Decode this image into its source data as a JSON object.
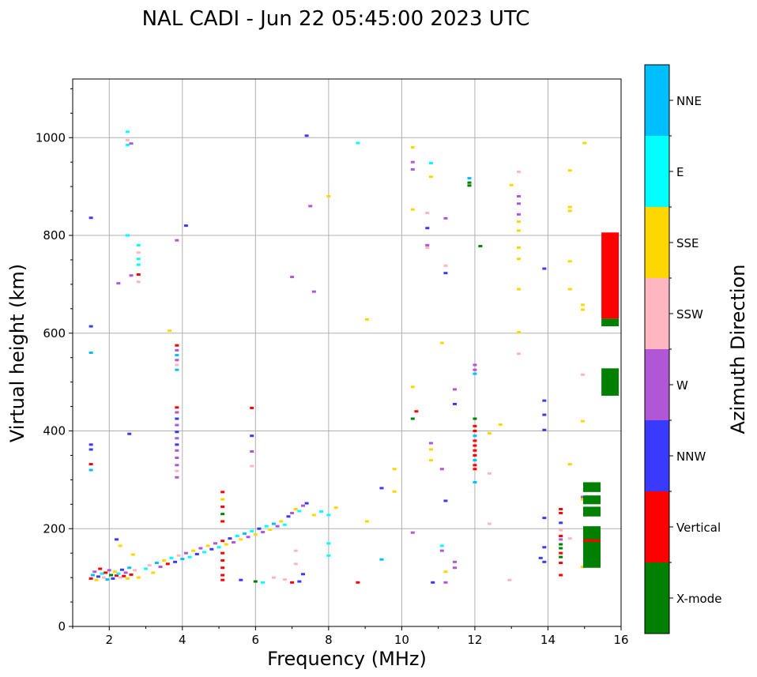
{
  "chart_data": {
    "type": "scatter",
    "title": "NAL CADI - Jun 22 05:45:00 2023 UTC",
    "xlabel": "Frequency (MHz)",
    "ylabel": "Virtual height (km)",
    "xlim": [
      1,
      16
    ],
    "ylim": [
      0,
      1120
    ],
    "xticks": [
      2,
      4,
      6,
      8,
      10,
      12,
      14,
      16
    ],
    "yticks": [
      0,
      200,
      400,
      600,
      800,
      1000
    ],
    "grid": true,
    "colorbar": {
      "label": "Azimuth Direction",
      "categories": [
        {
          "name": "X-mode",
          "color": "#008000"
        },
        {
          "name": "Vertical",
          "color": "#ff0000"
        },
        {
          "name": "NNW",
          "color": "#3a3aff"
        },
        {
          "name": "W",
          "color": "#b157d6"
        },
        {
          "name": "SSW",
          "color": "#ffb6c1"
        },
        {
          "name": "SSE",
          "color": "#ffd700"
        },
        {
          "name": "E",
          "color": "#00ffff"
        },
        {
          "name": "NNE",
          "color": "#00bfff"
        }
      ]
    },
    "points": [
      [
        1.5,
        98,
        "Vertical"
      ],
      [
        1.55,
        105,
        "NNE"
      ],
      [
        1.6,
        112,
        "W"
      ],
      [
        1.65,
        95,
        "SSE"
      ],
      [
        1.7,
        102,
        "NNW"
      ],
      [
        1.75,
        118,
        "Vertical"
      ],
      [
        1.8,
        108,
        "E"
      ],
      [
        1.85,
        100,
        "SSW"
      ],
      [
        1.9,
        110,
        "Vertical"
      ],
      [
        1.95,
        96,
        "NNE"
      ],
      [
        2.0,
        115,
        "W"
      ],
      [
        2.05,
        105,
        "X-mode"
      ],
      [
        2.1,
        98,
        "NNW"
      ],
      [
        2.15,
        112,
        "SSE"
      ],
      [
        2.2,
        104,
        "Vertical"
      ],
      [
        2.25,
        108,
        "E"
      ],
      [
        2.3,
        100,
        "SSW"
      ],
      [
        2.35,
        116,
        "NNW"
      ],
      [
        2.4,
        103,
        "Vertical"
      ],
      [
        2.45,
        110,
        "W"
      ],
      [
        2.5,
        98,
        "SSE"
      ],
      [
        2.55,
        120,
        "NNE"
      ],
      [
        2.6,
        106,
        "Vertical"
      ],
      [
        2.7,
        115,
        "SSW"
      ],
      [
        2.8,
        100,
        "SSE"
      ],
      [
        2.2,
        178,
        "NNW"
      ],
      [
        2.3,
        165,
        "SSE"
      ],
      [
        2.65,
        147,
        "SSE"
      ],
      [
        3.0,
        118,
        "E"
      ],
      [
        3.1,
        125,
        "SSW"
      ],
      [
        3.2,
        110,
        "SSE"
      ],
      [
        3.3,
        130,
        "NNE"
      ],
      [
        3.4,
        122,
        "W"
      ],
      [
        3.5,
        135,
        "SSE"
      ],
      [
        3.6,
        128,
        "Vertical"
      ],
      [
        3.7,
        140,
        "E"
      ],
      [
        3.8,
        132,
        "NNW"
      ],
      [
        3.9,
        145,
        "SSW"
      ],
      [
        4.0,
        138,
        "NNE"
      ],
      [
        4.1,
        150,
        "W"
      ],
      [
        4.2,
        142,
        "E"
      ],
      [
        4.3,
        155,
        "SSE"
      ],
      [
        4.4,
        148,
        "NNW"
      ],
      [
        4.5,
        160,
        "W"
      ],
      [
        4.6,
        152,
        "E"
      ],
      [
        4.7,
        165,
        "SSE"
      ],
      [
        4.8,
        158,
        "NNW"
      ],
      [
        4.9,
        170,
        "W"
      ],
      [
        5.0,
        162,
        "E"
      ],
      [
        5.1,
        175,
        "Vertical"
      ],
      [
        5.2,
        168,
        "SSE"
      ],
      [
        5.3,
        180,
        "NNW"
      ],
      [
        5.4,
        172,
        "W"
      ],
      [
        5.5,
        185,
        "E"
      ],
      [
        5.6,
        178,
        "SSE"
      ],
      [
        5.7,
        190,
        "NNE"
      ],
      [
        5.8,
        183,
        "W"
      ],
      [
        5.9,
        195,
        "E"
      ],
      [
        6.0,
        188,
        "SSE"
      ],
      [
        6.1,
        200,
        "NNW"
      ],
      [
        6.2,
        193,
        "W"
      ],
      [
        6.3,
        205,
        "E"
      ],
      [
        6.4,
        198,
        "SSE"
      ],
      [
        6.5,
        210,
        "NNE"
      ],
      [
        6.6,
        205,
        "W"
      ],
      [
        6.7,
        215,
        "SSE"
      ],
      [
        6.8,
        208,
        "E"
      ],
      [
        6.9,
        225,
        "NNW"
      ],
      [
        7.0,
        232,
        "W"
      ],
      [
        7.1,
        240,
        "SSE"
      ],
      [
        7.2,
        236,
        "E"
      ],
      [
        7.3,
        247,
        "W"
      ],
      [
        7.4,
        252,
        "NNW"
      ],
      [
        7.6,
        228,
        "SSE"
      ],
      [
        7.8,
        235,
        "E"
      ],
      [
        8.2,
        243,
        "SSE"
      ],
      [
        2.5,
        1012,
        "E"
      ],
      [
        2.5,
        995,
        "SSW"
      ],
      [
        2.5,
        985,
        "E"
      ],
      [
        2.6,
        988,
        "W"
      ],
      [
        2.5,
        800,
        "E"
      ],
      [
        2.8,
        780,
        "E"
      ],
      [
        2.8,
        765,
        "SSW"
      ],
      [
        2.8,
        752,
        "E"
      ],
      [
        2.8,
        740,
        "E"
      ],
      [
        2.8,
        720,
        "Vertical"
      ],
      [
        2.8,
        705,
        "SSW"
      ],
      [
        2.6,
        718,
        "W"
      ],
      [
        2.25,
        702,
        "W"
      ],
      [
        1.5,
        836,
        "NNW"
      ],
      [
        1.5,
        614,
        "NNW"
      ],
      [
        1.5,
        560,
        "NNE"
      ],
      [
        1.5,
        372,
        "NNW"
      ],
      [
        1.5,
        362,
        "NNW"
      ],
      [
        1.5,
        332,
        "Vertical"
      ],
      [
        1.5,
        320,
        "NNE"
      ],
      [
        2.55,
        394,
        "NNW"
      ],
      [
        3.65,
        605,
        "SSE"
      ],
      [
        3.85,
        790,
        "W"
      ],
      [
        4.1,
        820,
        "NNW"
      ],
      [
        3.85,
        575,
        "Vertical"
      ],
      [
        3.85,
        565,
        "W"
      ],
      [
        3.85,
        555,
        "NNE"
      ],
      [
        3.85,
        545,
        "W"
      ],
      [
        3.85,
        535,
        "SSW"
      ],
      [
        3.85,
        525,
        "NNE"
      ],
      [
        3.85,
        448,
        "Vertical"
      ],
      [
        3.85,
        438,
        "W"
      ],
      [
        3.85,
        425,
        "NNW"
      ],
      [
        3.85,
        412,
        "W"
      ],
      [
        3.85,
        398,
        "NNW"
      ],
      [
        3.85,
        385,
        "W"
      ],
      [
        3.85,
        372,
        "NNW"
      ],
      [
        3.85,
        360,
        "W"
      ],
      [
        3.85,
        345,
        "W"
      ],
      [
        3.85,
        330,
        "W"
      ],
      [
        3.85,
        318,
        "SSW"
      ],
      [
        3.85,
        305,
        "W"
      ],
      [
        5.1,
        275,
        "Vertical"
      ],
      [
        5.1,
        260,
        "SSE"
      ],
      [
        5.1,
        245,
        "Vertical"
      ],
      [
        5.1,
        230,
        "X-mode"
      ],
      [
        5.1,
        215,
        "Vertical"
      ],
      [
        5.1,
        150,
        "Vertical"
      ],
      [
        5.1,
        135,
        "Vertical"
      ],
      [
        5.1,
        120,
        "Vertical"
      ],
      [
        5.1,
        105,
        "Vertical"
      ],
      [
        5.1,
        95,
        "Vertical"
      ],
      [
        5.9,
        447,
        "Vertical"
      ],
      [
        5.9,
        390,
        "NNW"
      ],
      [
        5.9,
        358,
        "W"
      ],
      [
        5.9,
        328,
        "SSW"
      ],
      [
        5.6,
        95,
        "NNW"
      ],
      [
        6.0,
        92,
        "X-mode"
      ],
      [
        6.2,
        90,
        "E"
      ],
      [
        6.5,
        100,
        "SSW"
      ],
      [
        6.8,
        96,
        "SSW"
      ],
      [
        7.0,
        90,
        "Vertical"
      ],
      [
        7.2,
        92,
        "NNW"
      ],
      [
        7.3,
        107,
        "NNW"
      ],
      [
        7.1,
        128,
        "SSW"
      ],
      [
        7.1,
        155,
        "SSW"
      ],
      [
        7.0,
        715,
        "W"
      ],
      [
        7.5,
        860,
        "W"
      ],
      [
        7.4,
        1004,
        "NNW"
      ],
      [
        7.6,
        685,
        "W"
      ],
      [
        8.0,
        880,
        "SSE"
      ],
      [
        8.0,
        170,
        "E"
      ],
      [
        8.0,
        145,
        "E"
      ],
      [
        8.0,
        228,
        "E"
      ],
      [
        8.8,
        989,
        "E"
      ],
      [
        8.8,
        90,
        "Vertical"
      ],
      [
        9.05,
        628,
        "SSE"
      ],
      [
        9.05,
        215,
        "SSE"
      ],
      [
        9.45,
        283,
        "NNW"
      ],
      [
        9.45,
        137,
        "NNE"
      ],
      [
        9.8,
        322,
        "SSE"
      ],
      [
        9.8,
        276,
        "SSE"
      ],
      [
        10.3,
        980,
        "SSE"
      ],
      [
        10.3,
        950,
        "W"
      ],
      [
        10.3,
        935,
        "W"
      ],
      [
        10.3,
        853,
        "SSE"
      ],
      [
        10.3,
        490,
        "SSE"
      ],
      [
        10.3,
        425,
        "X-mode"
      ],
      [
        10.3,
        192,
        "W"
      ],
      [
        10.4,
        440,
        "Vertical"
      ],
      [
        10.7,
        846,
        "SSW"
      ],
      [
        10.7,
        815,
        "NNW"
      ],
      [
        10.7,
        780,
        "W"
      ],
      [
        10.7,
        775,
        "SSW"
      ],
      [
        10.8,
        948,
        "E"
      ],
      [
        10.8,
        920,
        "SSE"
      ],
      [
        10.8,
        375,
        "W"
      ],
      [
        10.8,
        362,
        "SSE"
      ],
      [
        10.8,
        340,
        "SSE"
      ],
      [
        10.85,
        90,
        "NNW"
      ],
      [
        11.1,
        580,
        "SSE"
      ],
      [
        11.1,
        322,
        "W"
      ],
      [
        11.1,
        165,
        "E"
      ],
      [
        11.1,
        155,
        "W"
      ],
      [
        11.2,
        835,
        "W"
      ],
      [
        11.2,
        738,
        "SSW"
      ],
      [
        11.2,
        723,
        "NNW"
      ],
      [
        11.2,
        257,
        "NNW"
      ],
      [
        11.2,
        112,
        "SSE"
      ],
      [
        11.2,
        90,
        "W"
      ],
      [
        11.45,
        485,
        "W"
      ],
      [
        11.45,
        455,
        "NNW"
      ],
      [
        11.45,
        132,
        "W"
      ],
      [
        11.45,
        120,
        "W"
      ],
      [
        11.85,
        917,
        "NNE"
      ],
      [
        11.85,
        908,
        "X-mode"
      ],
      [
        11.85,
        902,
        "X-mode"
      ],
      [
        12.15,
        778,
        "X-mode"
      ],
      [
        12.0,
        535,
        "W"
      ],
      [
        12.0,
        525,
        "W"
      ],
      [
        12.0,
        517,
        "NNE"
      ],
      [
        12.0,
        425,
        "X-mode"
      ],
      [
        12.0,
        410,
        "Vertical"
      ],
      [
        12.0,
        400,
        "Vertical"
      ],
      [
        12.0,
        390,
        "NNE"
      ],
      [
        12.0,
        380,
        "Vertical"
      ],
      [
        12.0,
        370,
        "Vertical"
      ],
      [
        12.0,
        360,
        "Vertical"
      ],
      [
        12.0,
        350,
        "Vertical"
      ],
      [
        12.0,
        340,
        "NNE"
      ],
      [
        12.0,
        330,
        "Vertical"
      ],
      [
        12.0,
        322,
        "Vertical"
      ],
      [
        12.0,
        295,
        "NNE"
      ],
      [
        12.4,
        395,
        "SSE"
      ],
      [
        12.7,
        413,
        "SSE"
      ],
      [
        12.4,
        313,
        "SSW"
      ],
      [
        12.4,
        210,
        "SSW"
      ],
      [
        12.95,
        95,
        "SSW"
      ],
      [
        13.0,
        903,
        "SSE"
      ],
      [
        13.2,
        930,
        "SSW"
      ],
      [
        13.2,
        880,
        "W"
      ],
      [
        13.2,
        865,
        "W"
      ],
      [
        13.2,
        843,
        "W"
      ],
      [
        13.2,
        828,
        "SSE"
      ],
      [
        13.2,
        810,
        "SSE"
      ],
      [
        13.2,
        775,
        "SSE"
      ],
      [
        13.2,
        752,
        "SSE"
      ],
      [
        13.2,
        690,
        "SSE"
      ],
      [
        13.2,
        602,
        "SSE"
      ],
      [
        13.2,
        558,
        "SSW"
      ],
      [
        13.9,
        732,
        "NNW"
      ],
      [
        13.9,
        462,
        "NNW"
      ],
      [
        13.9,
        433,
        "NNW"
      ],
      [
        13.9,
        402,
        "NNW"
      ],
      [
        13.9,
        222,
        "NNW"
      ],
      [
        13.9,
        162,
        "NNW"
      ],
      [
        13.9,
        132,
        "NNW"
      ],
      [
        13.8,
        140,
        "NNW"
      ],
      [
        14.35,
        240,
        "Vertical"
      ],
      [
        14.35,
        232,
        "Vertical"
      ],
      [
        14.35,
        212,
        "NNW"
      ],
      [
        14.35,
        197,
        "SSW"
      ],
      [
        14.35,
        185,
        "Vertical"
      ],
      [
        14.35,
        178,
        "W"
      ],
      [
        14.35,
        168,
        "X-mode"
      ],
      [
        14.35,
        160,
        "X-mode"
      ],
      [
        14.35,
        150,
        "Vertical"
      ],
      [
        14.35,
        142,
        "X-mode"
      ],
      [
        14.35,
        130,
        "Vertical"
      ],
      [
        14.35,
        105,
        "Vertical"
      ],
      [
        14.6,
        933,
        "SSE"
      ],
      [
        14.6,
        858,
        "SSE"
      ],
      [
        14.6,
        850,
        "SSE"
      ],
      [
        14.6,
        747,
        "SSE"
      ],
      [
        14.6,
        690,
        "SSE"
      ],
      [
        14.6,
        332,
        "SSE"
      ],
      [
        14.6,
        180,
        "SSW"
      ],
      [
        14.95,
        658,
        "SSE"
      ],
      [
        14.95,
        648,
        "SSE"
      ],
      [
        14.95,
        515,
        "SSW"
      ],
      [
        14.95,
        420,
        "SSE"
      ],
      [
        14.95,
        265,
        "W"
      ],
      [
        14.95,
        260,
        "SSE"
      ],
      [
        14.95,
        122,
        "SSE"
      ],
      [
        15.0,
        989,
        "SSE"
      ]
    ],
    "bars": [
      [
        15.2,
        120,
        205,
        "X-mode"
      ],
      [
        15.2,
        225,
        245,
        "X-mode"
      ],
      [
        15.2,
        250,
        268,
        "X-mode"
      ],
      [
        15.2,
        275,
        295,
        "X-mode"
      ],
      [
        15.2,
        173,
        178,
        "Vertical"
      ],
      [
        15.7,
        472,
        528,
        "X-mode"
      ],
      [
        15.7,
        614,
        630,
        "X-mode"
      ],
      [
        15.7,
        630,
        806,
        "Vertical"
      ]
    ]
  }
}
